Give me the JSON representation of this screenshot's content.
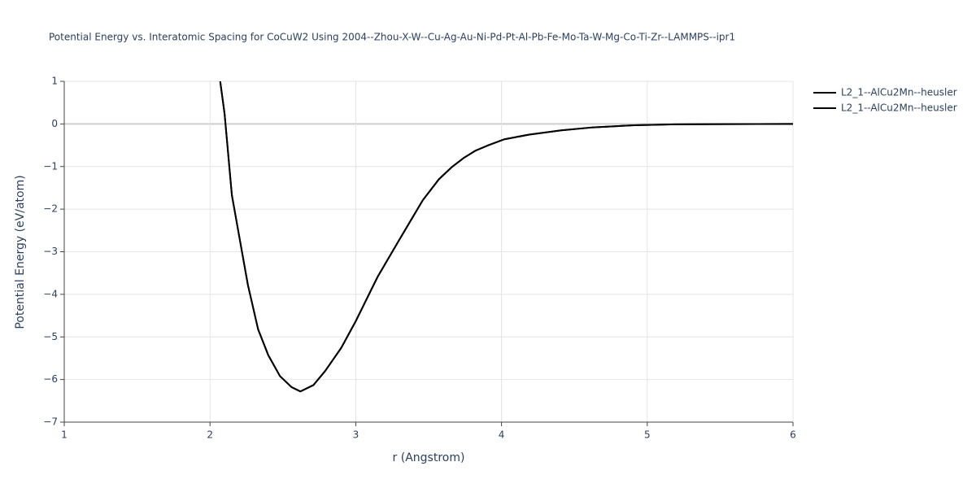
{
  "chart_data": {
    "type": "line",
    "title": "Potential Energy vs. Interatomic Spacing for CoCuW2 Using 2004--Zhou-X-W--Cu-Ag-Au-Ni-Pd-Pt-Al-Pb-Fe-Mo-Ta-W-Mg-Co-Ti-Zr--LAMMPS--ipr1",
    "x_label": "r (Angstrom)",
    "y_label": "Potential Energy (eV/atom)",
    "x": [
      2.07,
      2.1,
      2.15,
      2.2,
      2.26,
      2.33,
      2.4,
      2.48,
      2.56,
      2.62,
      2.71,
      2.79,
      2.9,
      3.0,
      3.15,
      3.29,
      3.46,
      3.57,
      3.66,
      3.74,
      3.82,
      3.91,
      4.02,
      4.19,
      4.41,
      4.63,
      4.91,
      5.19,
      6.0
    ],
    "series": [
      {
        "name": "L2_1--AlCu2Mn--heusler",
        "color": "#000000",
        "values": [
          1.0,
          0.24,
          -1.67,
          -2.63,
          -3.78,
          -4.82,
          -5.43,
          -5.92,
          -6.18,
          -6.28,
          -6.13,
          -5.8,
          -5.26,
          -4.63,
          -3.59,
          -2.77,
          -1.79,
          -1.3,
          -1.01,
          -0.8,
          -0.63,
          -0.5,
          -0.36,
          -0.25,
          -0.15,
          -0.08,
          -0.03,
          -0.01,
          0
        ]
      },
      {
        "name": "L2_1--AlCu2Mn--heusler",
        "color": "#000000",
        "values": [
          1.0,
          0.24,
          -1.67,
          -2.63,
          -3.78,
          -4.82,
          -5.43,
          -5.92,
          -6.18,
          -6.28,
          -6.13,
          -5.8,
          -5.26,
          -4.63,
          -3.59,
          -2.77,
          -1.79,
          -1.3,
          -1.01,
          -0.8,
          -0.63,
          -0.5,
          -0.36,
          -0.25,
          -0.15,
          -0.08,
          -0.03,
          -0.01,
          0
        ]
      }
    ],
    "xlim": [
      1,
      6
    ],
    "ylim": [
      -7,
      1
    ],
    "xticks": [
      1,
      2,
      3,
      4,
      5,
      6
    ],
    "yticks": [
      {
        "value": -7,
        "label": "−7"
      },
      {
        "value": -6,
        "label": "−6"
      },
      {
        "value": -5,
        "label": "−5"
      },
      {
        "value": -4,
        "label": "−4"
      },
      {
        "value": -3,
        "label": "−3"
      },
      {
        "value": -2,
        "label": "−2"
      },
      {
        "value": -1,
        "label": "−1"
      },
      0,
      1
    ],
    "grid": true,
    "legend": "right"
  }
}
